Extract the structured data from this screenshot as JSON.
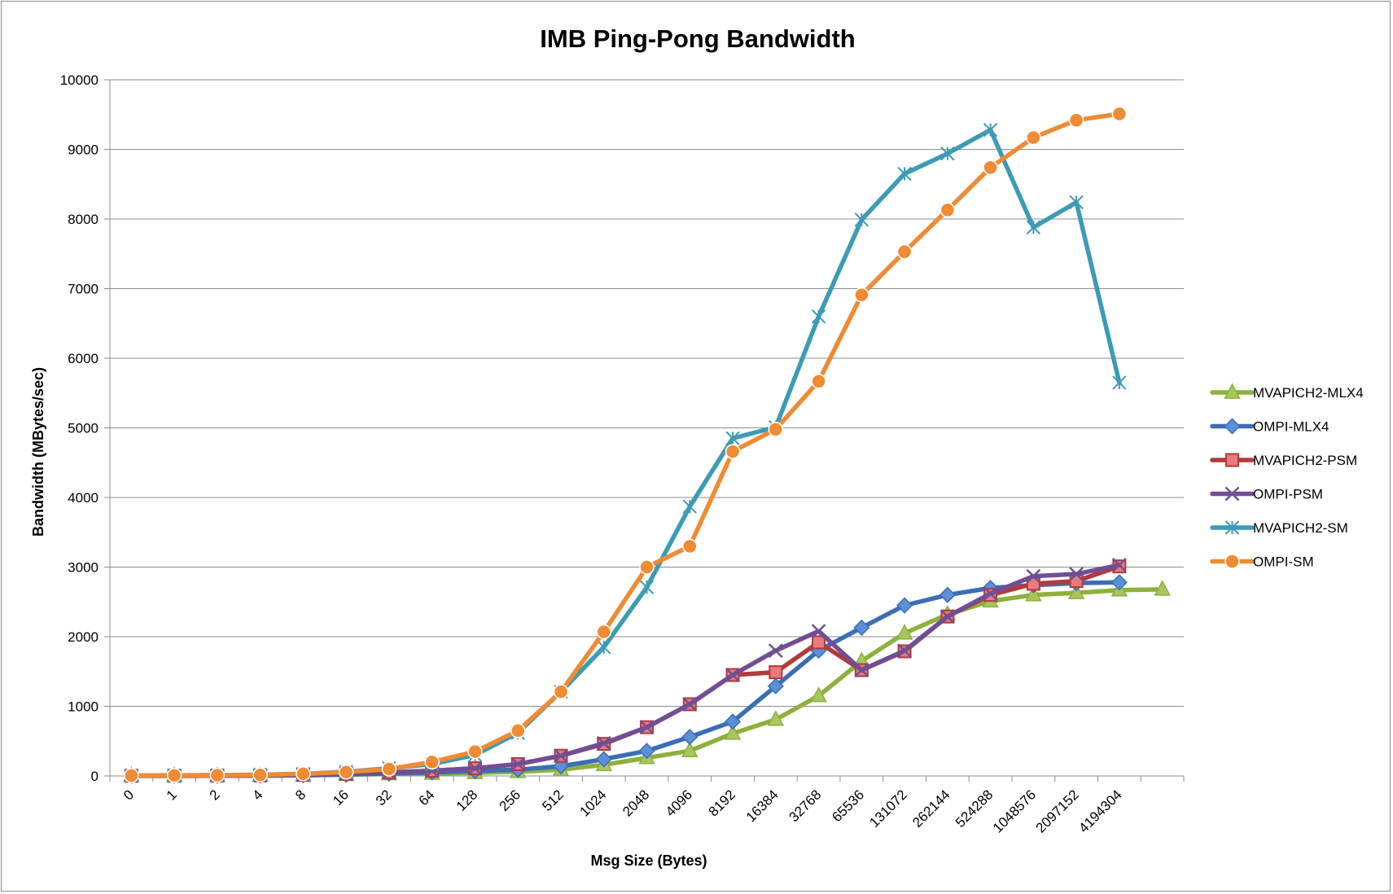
{
  "chart_data": {
    "type": "line",
    "title": "IMB Ping-Pong Bandwidth",
    "xlabel": "Msg Size (Bytes)",
    "ylabel": "Bandwidth (MBytes/sec)",
    "ylim": [
      0,
      10000
    ],
    "yticks": [
      "0",
      "1000",
      "2000",
      "3000",
      "4000",
      "5000",
      "6000",
      "7000",
      "8000",
      "9000",
      "10000"
    ],
    "categories": [
      "0",
      "1",
      "2",
      "4",
      "8",
      "16",
      "32",
      "64",
      "128",
      "256",
      "512",
      "1024",
      "2048",
      "4096",
      "8192",
      "16384",
      "32768",
      "65536",
      "131072",
      "262144",
      "524288",
      "1048576",
      "2097152",
      "4194304",
      ""
    ],
    "grid": "horizontal",
    "legend_position": "right",
    "series": [
      {
        "name": "MVAPICH2-MLX4",
        "color": "#8DB13B",
        "marker": "triangle",
        "values": [
          1,
          2,
          3,
          5,
          9,
          18,
          28,
          35,
          44,
          60,
          90,
          160,
          260,
          360,
          610,
          810,
          1150,
          1650,
          2050,
          2320,
          2510,
          2600,
          2630,
          2670,
          2680
        ]
      },
      {
        "name": "OMPI-MLX4",
        "color": "#3C6EB4",
        "marker": "diamond",
        "values": [
          2,
          2,
          3,
          5,
          10,
          20,
          35,
          50,
          70,
          90,
          140,
          240,
          360,
          560,
          780,
          1290,
          1800,
          2130,
          2450,
          2600,
          2700,
          2740,
          2770,
          2780,
          null
        ]
      },
      {
        "name": "MVAPICH2-PSM",
        "color": "#B23A3A",
        "marker": "square",
        "values": [
          3,
          4,
          5,
          8,
          15,
          30,
          50,
          75,
          110,
          170,
          290,
          460,
          700,
          1030,
          1450,
          1490,
          1920,
          1520,
          1790,
          2290,
          2600,
          2760,
          2800,
          3010,
          null
        ]
      },
      {
        "name": "OMPI-PSM",
        "color": "#714E94",
        "marker": "x",
        "values": [
          3,
          4,
          6,
          9,
          15,
          30,
          50,
          75,
          110,
          170,
          290,
          470,
          700,
          1030,
          1450,
          1800,
          2080,
          1520,
          1800,
          2290,
          2620,
          2870,
          2900,
          3030,
          null
        ]
      },
      {
        "name": "MVAPICH2-SM",
        "color": "#3C9BB5",
        "marker": "asterisk",
        "values": [
          5,
          8,
          12,
          18,
          30,
          60,
          110,
          170,
          300,
          620,
          1210,
          1850,
          2710,
          3870,
          4850,
          5010,
          6600,
          7990,
          8650,
          8940,
          9280,
          7880,
          8240,
          5650,
          null
        ]
      },
      {
        "name": "OMPI-SM",
        "color": "#EF8B33",
        "marker": "circle",
        "values": [
          6,
          8,
          10,
          15,
          30,
          55,
          100,
          200,
          350,
          650,
          1210,
          2070,
          3000,
          3300,
          4660,
          4980,
          5670,
          6910,
          7530,
          8130,
          8740,
          9170,
          9420,
          9510,
          null
        ]
      }
    ]
  }
}
